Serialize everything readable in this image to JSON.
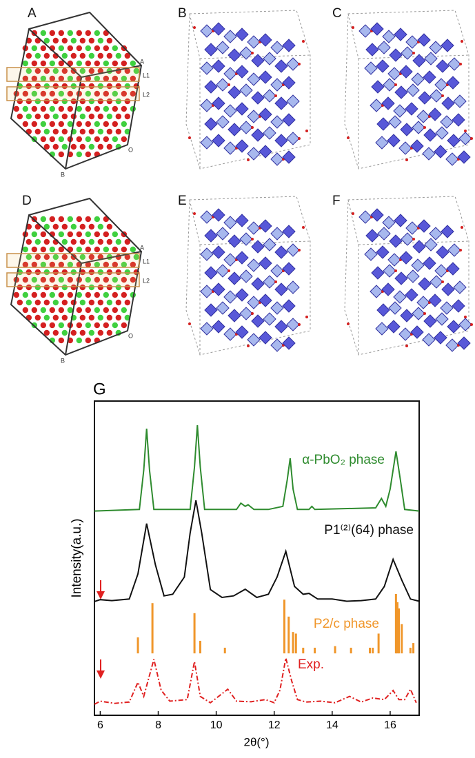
{
  "panels": [
    {
      "label": "A",
      "layers": [
        "L1",
        "L2"
      ],
      "axes": [
        "A",
        "O",
        "B"
      ]
    },
    {
      "label": "B"
    },
    {
      "label": "C"
    },
    {
      "label": "D",
      "layers": [
        "L1",
        "L2"
      ],
      "axes": [
        "A",
        "O",
        "B"
      ]
    },
    {
      "label": "E"
    },
    {
      "label": "F"
    }
  ],
  "chart_data": {
    "type": "line",
    "panel_label": "G",
    "xlabel": "2θ(°)",
    "ylabel": "Intensity(a.u.)",
    "xlim": [
      5.8,
      17.0
    ],
    "xticks": [
      6,
      8,
      10,
      12,
      14,
      16
    ],
    "ylim": [
      0,
      100
    ],
    "series": [
      {
        "name": "α-PbO₂ phase",
        "color": "#2e8b2e",
        "style": "solid",
        "x": [
          5.8,
          7.35,
          7.5,
          7.6,
          7.7,
          7.85,
          9.1,
          9.25,
          9.35,
          9.45,
          9.6,
          10.7,
          10.85,
          11.0,
          11.1,
          11.3,
          11.8,
          12.3,
          12.45,
          12.55,
          12.65,
          12.8,
          13.2,
          13.3,
          13.4,
          15.5,
          15.7,
          15.85,
          16.0,
          16.2,
          16.35,
          16.5,
          17.0
        ],
        "values": [
          65,
          65.5,
          78,
          91.2,
          78,
          65.5,
          65.5,
          79,
          92.3,
          79,
          65.5,
          65.5,
          67.5,
          66.5,
          67,
          65.5,
          65.5,
          66.5,
          75,
          81.8,
          72,
          65.5,
          65.5,
          66.5,
          65.5,
          66,
          69,
          66.5,
          72,
          84,
          75,
          65.5,
          65
        ]
      },
      {
        "name": "P1⁽²⁾(64) phase",
        "color": "#111111",
        "style": "solid",
        "x": [
          5.8,
          6.0,
          6.4,
          7.0,
          7.3,
          7.6,
          7.9,
          8.2,
          8.5,
          8.9,
          9.1,
          9.3,
          9.5,
          9.8,
          10.2,
          10.6,
          11.0,
          11.4,
          11.8,
          12.1,
          12.4,
          12.7,
          13.0,
          13.2,
          13.5,
          14.0,
          14.5,
          15.0,
          15.5,
          15.8,
          16.1,
          16.4,
          16.7,
          17.0
        ],
        "values": [
          36.2,
          36.8,
          36.5,
          37,
          45,
          61,
          48,
          38,
          38.5,
          44,
          58,
          68.4,
          58,
          40,
          37.5,
          38,
          40.1,
          37.5,
          38.5,
          44,
          52.2,
          41,
          38.5,
          38.8,
          37,
          37,
          36.3,
          36.5,
          37,
          41,
          49.6,
          43,
          37,
          36.3
        ]
      },
      {
        "name": "P2/c phase",
        "color": "#f0962a",
        "style": "stick",
        "base": 19.7,
        "x": [
          7.3,
          7.8,
          9.25,
          9.45,
          10.3,
          12.35,
          12.5,
          12.65,
          12.75,
          13.0,
          13.4,
          14.1,
          14.65,
          15.3,
          15.4,
          15.6,
          16.2,
          16.25,
          16.3,
          16.4,
          16.7,
          16.8
        ],
        "values": [
          24.8,
          35.7,
          32.5,
          23.7,
          21.5,
          36.8,
          31.4,
          26.5,
          26,
          21.5,
          21.5,
          22,
          21.5,
          21.5,
          21.5,
          26,
          38.6,
          36,
          34,
          29,
          21.5,
          23
        ]
      },
      {
        "name": "Exp.",
        "color": "#e02020",
        "style": "dash-dot",
        "x": [
          5.8,
          6.0,
          6.5,
          7.0,
          7.3,
          7.5,
          7.85,
          8.1,
          8.4,
          9.0,
          9.25,
          9.45,
          9.8,
          10.4,
          10.7,
          11.2,
          11.7,
          12.0,
          12.2,
          12.4,
          12.6,
          12.8,
          13.1,
          13.6,
          14.1,
          14.6,
          15.0,
          15.4,
          15.8,
          16.1,
          16.3,
          16.5,
          16.7,
          16.9
        ],
        "values": [
          3.5,
          4.5,
          3.8,
          4.2,
          10.5,
          6,
          17.8,
          8,
          4.5,
          5,
          17.1,
          6,
          4,
          8.3,
          4.5,
          4.3,
          5,
          4,
          8,
          18.2,
          11,
          5,
          4.2,
          4.5,
          4,
          6,
          4.2,
          5.5,
          5,
          7.9,
          5,
          5,
          8.3,
          4
        ]
      }
    ]
  }
}
